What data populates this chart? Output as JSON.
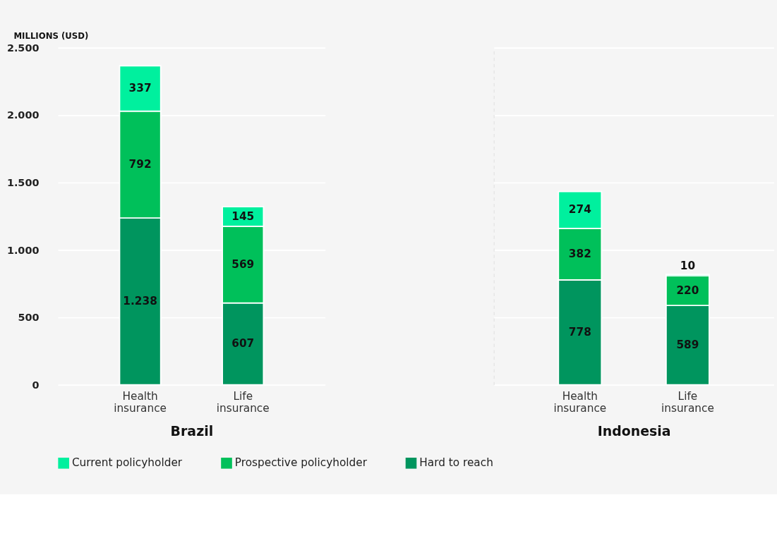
{
  "chart_data": [
    {
      "type": "bar",
      "stacked": true,
      "ylabel": "MILLIONS (USD)",
      "xlabel": "Brazil",
      "categories": [
        "Health insurance",
        "Life insurance"
      ],
      "series": [
        {
          "name": "Hard to reach",
          "color": "#00955e",
          "values": [
            1238,
            607
          ],
          "value_labels": [
            "1.238",
            "607"
          ]
        },
        {
          "name": "Prospective policyholder",
          "color": "#00c05a",
          "values": [
            792,
            569
          ],
          "value_labels": [
            "792",
            "569"
          ]
        },
        {
          "name": "Current policyholder",
          "color": "#00f09e",
          "values": [
            337,
            145
          ],
          "value_labels": [
            "337",
            "145"
          ]
        }
      ],
      "ylim": [
        0,
        2500
      ],
      "yticks": [
        {
          "value": 0,
          "label": "0"
        },
        {
          "value": 500,
          "label": "500"
        },
        {
          "value": 1000,
          "label": "1.000"
        },
        {
          "value": 1500,
          "label": "1.500"
        },
        {
          "value": 2000,
          "label": "2.000"
        },
        {
          "value": 2500,
          "label": "2.500"
        }
      ],
      "grid": "y",
      "legend": "bottom"
    },
    {
      "type": "bar",
      "stacked": true,
      "xlabel": "Indonesia",
      "categories": [
        "Health insurance",
        "Life insurance"
      ],
      "series": [
        {
          "color": "#00955e",
          "values": [
            778,
            589
          ],
          "value_labels": [
            "778",
            "589"
          ]
        },
        {
          "color": "#00c05a",
          "values": [
            382,
            220
          ],
          "value_labels": [
            "382",
            "220"
          ]
        },
        {
          "color": "#00f09e",
          "values": [
            274,
            10
          ],
          "value_labels": [
            "274",
            "10"
          ]
        }
      ],
      "ylim": [
        0,
        2500
      ],
      "yticks": [
        0,
        500,
        1000,
        1500,
        2000,
        2500
      ],
      "grid": "y",
      "tick_labels": "x",
      "legend": false
    }
  ]
}
